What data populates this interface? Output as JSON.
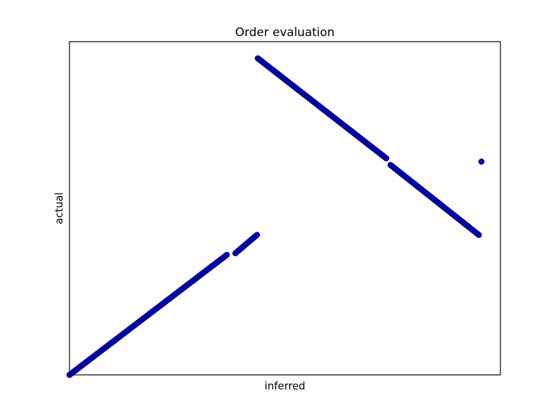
{
  "chart_data": {
    "type": "scatter",
    "title": "Order evaluation",
    "xlabel": "inferred",
    "ylabel": "actual",
    "xlim": [
      0,
      100
    ],
    "ylim": [
      0,
      100
    ],
    "grid": false,
    "show_ticks": false,
    "marker_color": "#0000cc",
    "marker_edge_color": "#00007a",
    "series": [
      {
        "segments": [
          {
            "x_start": 0.0,
            "y_start": 0.0,
            "x_end": 36.5,
            "y_end": 36.0,
            "n": 120
          },
          {
            "x_start": 38.5,
            "y_start": 36.5,
            "x_end": 43.5,
            "y_end": 42.0,
            "n": 18
          },
          {
            "x_start": 43.7,
            "y_start": 95.0,
            "x_end": 73.5,
            "y_end": 65.0,
            "n": 110
          },
          {
            "x_start": 74.5,
            "y_start": 63.0,
            "x_end": 95.0,
            "y_end": 42.0,
            "n": 80
          },
          {
            "x_start": 95.6,
            "y_start": 64.0,
            "x_end": 95.6,
            "y_end": 64.0,
            "n": 1
          }
        ]
      }
    ]
  }
}
